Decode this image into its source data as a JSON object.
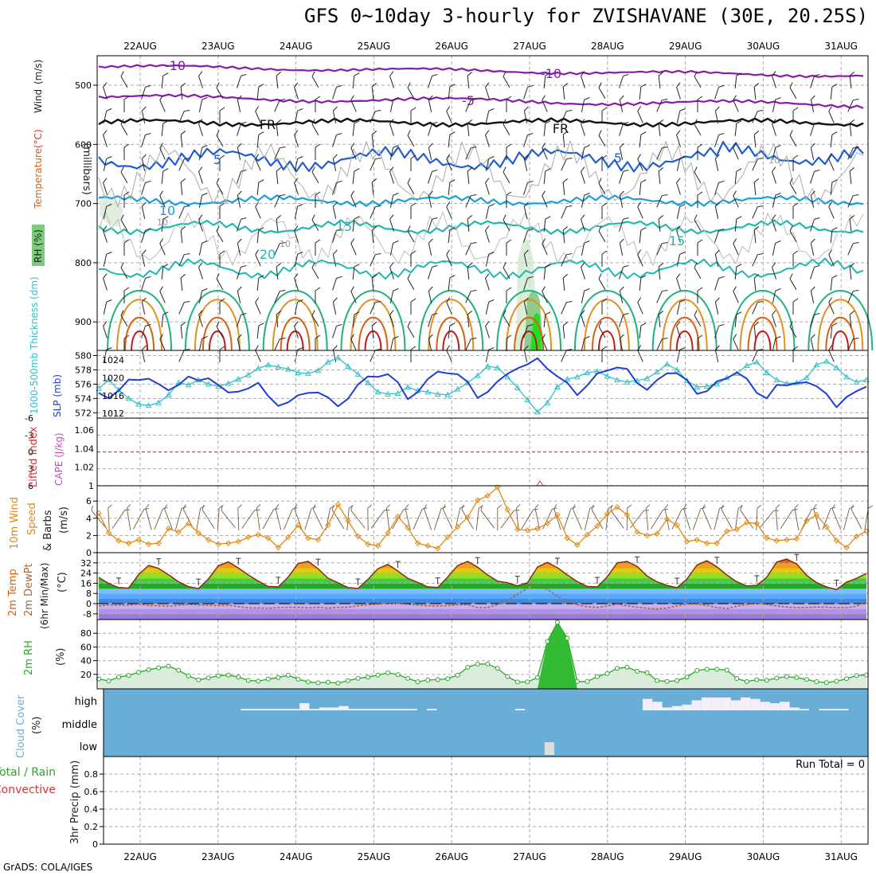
{
  "title": "GFS 0~10day 3-hourly for ZVISHAVANE (30E, 20.25S)",
  "footer": "GrADS: COLA/IGES",
  "colors": {
    "thickness": "#33c0c8",
    "slp": "#1f3fd0",
    "wind": "#e08a16",
    "temp_line": "#8b2a10",
    "dewpt": "#a06a40",
    "rh": "#2aa82a",
    "cloud": "#6aaed8",
    "cloud_block": "#f4eef8",
    "purple": "#8a1aa8",
    "blue": "#1f5fd0",
    "lightblue": "#19a0d8",
    "cyan": "#20b8b0",
    "green": "#20b080",
    "orange": "#e09020",
    "darkorange": "#d86010",
    "red": "#c01818",
    "precip_red": "#e03030",
    "cape_purple": "#c050c0"
  },
  "chart_data": {
    "type": "meteogram",
    "time_labels": [
      "22AUG",
      "23AUG",
      "24AUG",
      "25AUG",
      "26AUG",
      "27AUG",
      "28AUG",
      "29AUG",
      "30AUG",
      "31AUG"
    ],
    "panels": [
      {
        "id": "upper_air",
        "ylabel_parts": [
          "RH (%)",
          "Temperature",
          "(°C)",
          "Wind",
          "(m/s)"
        ],
        "yaxis_label": "(millibars)",
        "pressure_ticks": [
          500,
          600,
          700,
          800,
          900
        ],
        "contour_labels": [
          "-10",
          "-10",
          "-5",
          "FR",
          "FR",
          "5",
          "5",
          "10",
          "10",
          "10",
          "10",
          "15",
          "15",
          "20"
        ]
      },
      {
        "id": "thickness_slp",
        "left_label": "1000-500mb Thickness (dm)",
        "right_label": "SLP (mb)",
        "left_ticks": [
          580,
          578,
          576,
          574,
          572
        ],
        "right_ticks": [
          1024,
          1020,
          1016,
          1012
        ],
        "thickness_dm": [
          575.4,
          576.6,
          575.2,
          574.0,
          573.2,
          573.0,
          573.4,
          574.5,
          576.2,
          575.9,
          576.6,
          576.0,
          575.7,
          576.1,
          576.7,
          577.3,
          578.2,
          578.7,
          578.4,
          578.1,
          577.6,
          577.5,
          577.9,
          579.1,
          579.7,
          578.5,
          577.4,
          576.2,
          574.9,
          574.6,
          574.7,
          575.6,
          575.1,
          574.9,
          574.6,
          574.5,
          575.3,
          576.2,
          577.2,
          578.5,
          578.3,
          577.0,
          575.5,
          573.8,
          572.1,
          573.4,
          575.6,
          576.7,
          577.0,
          577.6,
          577.8,
          577.1,
          576.6,
          576.3,
          576.5,
          576.8,
          577.7,
          578.8,
          578.0,
          576.5,
          575.6,
          575.7,
          576.0,
          576.9,
          577.5,
          578.6,
          579.1,
          577.6,
          576.6,
          576.1,
          576.2,
          576.9,
          578.7,
          579.2,
          578.3,
          577.0,
          576.3,
          576.6
        ],
        "slp_mb": [
          1016.6,
          1015.4,
          1017.1,
          1019.6,
          1019.5,
          1019.8,
          1018.6,
          1017.2,
          1018.4,
          1020.3,
          1019.4,
          1019.9,
          1018.4,
          1016.7,
          1016.9,
          1017.6,
          1018.9,
          1015.9,
          1013.7,
          1014.5,
          1016.1,
          1016.6,
          1016.7,
          1015.6,
          1013.6,
          1015.3,
          1018.5,
          1020.3,
          1020.2,
          1020.8,
          1019.0,
          1015.2,
          1016.8,
          1019.7,
          1021.4,
          1021.0,
          1020.8,
          1019.1,
          1015.5,
          1016.8,
          1019.2,
          1020.9,
          1022.1,
          1023.0,
          1024.4,
          1022.0,
          1020.3,
          1018.9,
          1016.1,
          1018.3,
          1021.0,
          1021.6,
          1022.3,
          1022.0,
          1018.8,
          1017.3,
          1019.5,
          1021.0,
          1021.0,
          1019.5,
          1016.4,
          1017.0,
          1019.2,
          1019.9,
          1021.2,
          1019.8,
          1016.6,
          1015.4,
          1018.4,
          1018.3,
          1018.8,
          1019.0,
          1018.1,
          1016.4,
          1013.4,
          1015.7,
          1017.0,
          1018.0
        ]
      },
      {
        "id": "stability",
        "left_label": "Lifted Index",
        "right_label": "CAPE (J/kg)",
        "left_ticks": [
          "-6",
          "-3",
          "0",
          "3",
          "6"
        ],
        "right_ticks": [
          "1.06",
          "1.04",
          "1.02",
          "1"
        ]
      },
      {
        "id": "wind10m",
        "label": "10m Wind Speed (m/s) & Barbs",
        "label_parts": [
          "10m Wind",
          "Speed",
          "& Barbs",
          "(m/s)"
        ],
        "ticks": [
          0,
          2,
          4,
          6
        ],
        "speed_ms": [
          4.6,
          2.3,
          1.4,
          1.1,
          1.5,
          1.0,
          1.1,
          2.8,
          2.4,
          3.4,
          2.3,
          1.5,
          1.0,
          1.1,
          1.3,
          1.8,
          2.1,
          1.7,
          0.6,
          1.8,
          3.2,
          1.7,
          1.5,
          3.2,
          5.6,
          3.7,
          1.9,
          1.0,
          0.8,
          2.3,
          4.2,
          2.9,
          1.1,
          0.8,
          0.5,
          1.8,
          3.0,
          4.1,
          6.1,
          6.6,
          7.6,
          5.0,
          2.7,
          2.6,
          2.8,
          3.4,
          4.4,
          1.7,
          0.9,
          2.1,
          3.1,
          4.5,
          5.3,
          4.4,
          2.4,
          2.0,
          2.2,
          3.9,
          3.2,
          1.3,
          1.5,
          1.1,
          1.1,
          2.5,
          2.7,
          3.5,
          3.4,
          1.7,
          1.4,
          1.5,
          1.6,
          3.7,
          4.4,
          3.0,
          1.4,
          0.6,
          1.9,
          2.5
        ]
      },
      {
        "id": "temp2m",
        "label_parts": [
          "2m Temp",
          "2m DewPt",
          "(6hr Min/Max)",
          "(°C)"
        ],
        "ticks": [
          32,
          24,
          16,
          8,
          0,
          -8
        ],
        "temp_c": [
          20.5,
          15.8,
          12.6,
          12.2,
          22.8,
          30.0,
          27.7,
          22.6,
          17.2,
          13.4,
          11.8,
          19.4,
          29.7,
          32.8,
          28.0,
          22.5,
          17.7,
          13.5,
          13.2,
          20.9,
          31.5,
          33.2,
          27.4,
          20.0,
          16.4,
          12.6,
          11.9,
          19.0,
          27.4,
          30.8,
          25.6,
          19.9,
          16.7,
          13.2,
          12.7,
          20.9,
          29.9,
          33.2,
          28.6,
          22.5,
          17.7,
          16.4,
          14.0,
          16.3,
          28.7,
          32.4,
          28.2,
          22.5,
          17.3,
          13.5,
          13.1,
          21.0,
          32.0,
          33.1,
          29.2,
          21.6,
          17.1,
          14.3,
          12.5,
          19.3,
          30.3,
          33.7,
          28.9,
          22.5,
          17.1,
          13.9,
          14.4,
          20.7,
          32.6,
          35.0,
          31.1,
          22.2,
          16.5,
          13.1,
          11.0,
          16.9,
          19.8,
          23.7
        ],
        "dewpt_c": [
          -1.8,
          -1.0,
          -1.2,
          -1.1,
          -0.4,
          -1.4,
          -1.6,
          -2.0,
          -1.3,
          -0.7,
          -1.0,
          -1.2,
          -1.5,
          -1.2,
          -2.3,
          -3.4,
          -3.4,
          -3.7,
          -3.1,
          -2.9,
          -2.9,
          -3.3,
          -2.8,
          -3.6,
          -2.8,
          -2.9,
          -1.6,
          -0.9,
          -0.4,
          0.2,
          0.1,
          -0.6,
          -1.1,
          -1.6,
          -1.8,
          -1.6,
          -0.9,
          -1.0,
          -3.1,
          -3.1,
          -0.8,
          2.4,
          7.5,
          12.0,
          14.7,
          11.2,
          5.9,
          1.7,
          -0.9,
          -2.5,
          -3.0,
          -1.9,
          -0.4,
          -1.6,
          -2.8,
          -3.6,
          -4.2,
          -3.5,
          -1.8,
          -0.3,
          -0.4,
          -1.4,
          -3.1,
          -3.8,
          -2.0,
          -0.6,
          0.1,
          -0.7,
          -1.9,
          -2.6,
          -3.1,
          -3.0,
          -2.7,
          -2.8,
          -3.1,
          -3.2,
          -2.0,
          1.5
        ]
      },
      {
        "id": "rh2m",
        "label": "2m RH",
        "unit": "(%)",
        "ticks": [
          20,
          40,
          60,
          80
        ],
        "rh_pct": [
          13.2,
          10.5,
          16.1,
          18.5,
          23.0,
          26.7,
          29.5,
          32.0,
          26.0,
          17.7,
          12.0,
          14.8,
          17.9,
          19.0,
          16.2,
          11.2,
          10.2,
          13.1,
          15.4,
          18.7,
          12.9,
          8.9,
          7.7,
          8.6,
          7.2,
          10.7,
          14.3,
          16.1,
          18.8,
          22.2,
          19.7,
          14.2,
          9.2,
          11.7,
          12.3,
          13.6,
          18.9,
          30.3,
          35.0,
          35.1,
          28.8,
          16.9,
          8.8,
          8.9,
          15.4,
          68.0,
          96.0,
          72.8,
          9.6,
          9.5,
          16.8,
          21.3,
          28.7,
          30.5,
          24.5,
          22.4,
          10.9,
          9.6,
          10.9,
          16.0,
          25.7,
          27.5,
          27.5,
          26.3,
          14.0,
          9.4,
          12.2,
          11.3,
          14.7,
          16.8,
          15.2,
          12.5,
          9.3,
          8.0,
          10.0,
          13.7,
          18.4,
          19.1
        ]
      },
      {
        "id": "cloud",
        "label": "Cloud Cover (%)",
        "label_parts": [
          "Cloud Cover",
          "(%)"
        ],
        "levels": [
          "high",
          "middle",
          "low"
        ],
        "high_pct": [
          0,
          0,
          0,
          0,
          0,
          0,
          0,
          0,
          0,
          0,
          0,
          0,
          0,
          0,
          10,
          10,
          10,
          10,
          10,
          10,
          50,
          10,
          20,
          20,
          30,
          10,
          10,
          10,
          10,
          10,
          10,
          10,
          0,
          10,
          0,
          0,
          0,
          0,
          0,
          0,
          0,
          0,
          10,
          0,
          0,
          0,
          0,
          0,
          0,
          0,
          0,
          0,
          0,
          0,
          0,
          80,
          60,
          20,
          30,
          40,
          70,
          90,
          90,
          90,
          70,
          90,
          80,
          60,
          50,
          60,
          20,
          10,
          0,
          10,
          10,
          10,
          0,
          0
        ],
        "low_pct": [
          0,
          0,
          0,
          0,
          0,
          0,
          0,
          0,
          0,
          0,
          0,
          0,
          0,
          0,
          0,
          0,
          0,
          0,
          0,
          0,
          0,
          0,
          0,
          0,
          0,
          0,
          0,
          0,
          0,
          0,
          0,
          0,
          0,
          0,
          0,
          0,
          0,
          0,
          0,
          0,
          0,
          0,
          0,
          0,
          0,
          50,
          0,
          0,
          0,
          0,
          0,
          0,
          0,
          0,
          0,
          0,
          0,
          0,
          0,
          0,
          0,
          0,
          0,
          0,
          0,
          0,
          0,
          0,
          0,
          0,
          0,
          0,
          0,
          0,
          0,
          0,
          0,
          0
        ]
      },
      {
        "id": "precip",
        "label": "3hr Precip (mm)",
        "legend_parts": [
          "Total / Rain",
          "Convective"
        ],
        "ticks": [
          0,
          0.2,
          0.4,
          0.6,
          0.8
        ],
        "run_total": "Run Total = 0",
        "values": []
      }
    ]
  }
}
